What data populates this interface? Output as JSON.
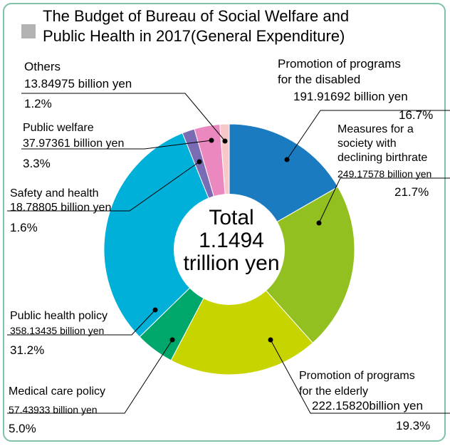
{
  "title_line1": "The Budget of Bureau of Social Welfare and",
  "title_line2": "Public Health in 2017(General Expenditure)",
  "center": {
    "line1": "Total",
    "line2": "1.1494",
    "line3": "trillion yen"
  },
  "colors": {
    "frame": "#7fc2a6",
    "title_square": "#b3b3b3"
  },
  "chart_data": {
    "type": "pie",
    "title": "The Budget of Bureau of Social Welfare and Public Health in 2017(General Expenditure)",
    "total_label": "Total 1.1494 trillion yen",
    "slices": [
      {
        "name": "Promotion of programs for the disabled",
        "value_label": "191.91692 billion yen",
        "percent": 16.7,
        "color": "#1a7bc0"
      },
      {
        "name": "Measures for a society with declining birthrate",
        "value_label": "249.17578 billion yen",
        "percent": 21.7,
        "color": "#93c021"
      },
      {
        "name": "Promotion of programs for the elderly",
        "value_label": "222.15820billion yen",
        "percent": 19.3,
        "color": "#c8d400"
      },
      {
        "name": "Medical care policy",
        "value_label": "57.43933 billion yen",
        "percent": 5.0,
        "color": "#00a76b"
      },
      {
        "name": "Public health policy",
        "value_label": "358.13435 billion yen",
        "percent": 31.2,
        "color": "#00b0d8"
      },
      {
        "name": "Safety and health",
        "value_label": "18.78805 billion yen",
        "percent": 1.6,
        "color": "#7a6bb5"
      },
      {
        "name": "Public welfare",
        "value_label": "37.97361 billion yen",
        "percent": 3.3,
        "color": "#ec88c0"
      },
      {
        "name": "Others",
        "value_label": "13.84975 billion yen",
        "percent": 1.2,
        "color": "#f8c8c8"
      }
    ]
  },
  "labels": {
    "disabled": {
      "l1": "Promotion of programs",
      "l2": "for the disabled",
      "value": "191.91692 billion yen",
      "pct": "16.7%"
    },
    "birthrate": {
      "l1": "Measures for a",
      "l2": "society with",
      "l3": "declining birthrate",
      "value": "249.17578 billion yen",
      "pct": "21.7%"
    },
    "elderly": {
      "l1": "Promotion of programs",
      "l2": "for the elderly",
      "value": "222.15820billion yen",
      "pct": "19.3%"
    },
    "medical": {
      "l1": "Medical care policy",
      "value": "57.43933 billion yen",
      "pct": "5.0%"
    },
    "publichealth": {
      "l1": "Public health policy",
      "value": "358.13435 billion yen",
      "pct": "31.2%"
    },
    "safety": {
      "l1": "Safety and health",
      "value": "18.78805 billion yen",
      "pct": "1.6%"
    },
    "welfare": {
      "l1": "Public welfare",
      "value": "37.97361 billion yen",
      "pct": "3.3%"
    },
    "others": {
      "l1": "Others",
      "value": "13.84975 billion yen",
      "pct": "1.2%"
    }
  }
}
